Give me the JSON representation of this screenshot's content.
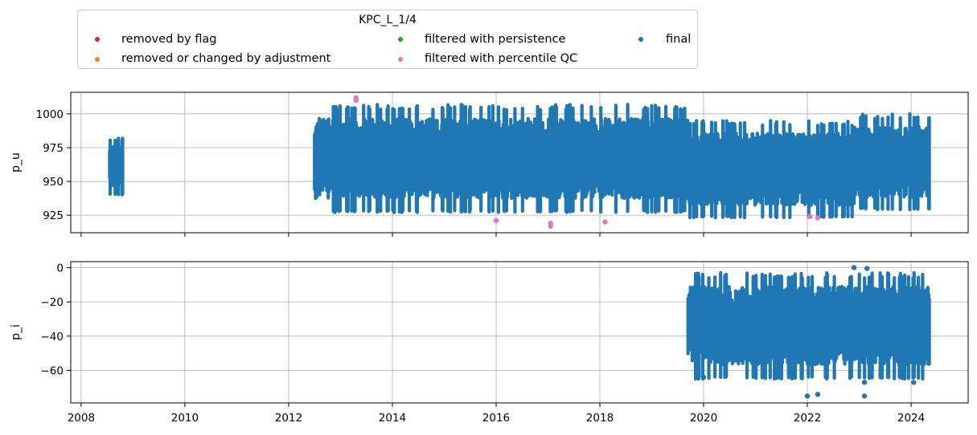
{
  "legend": {
    "title": "KPC_L_1/4",
    "items": [
      {
        "label": "removed by flag",
        "color": "#d62728"
      },
      {
        "label": "removed or changed by adjustment",
        "color": "#ff7f0e"
      },
      {
        "label": "filtered with persistence",
        "color": "#2ca02c"
      },
      {
        "label": "filtered with percentile QC",
        "color": "#e377c2"
      },
      {
        "label": "final",
        "color": "#1f77b4"
      }
    ]
  },
  "chart_data": [
    {
      "type": "scatter",
      "ylabel": "p_u",
      "xlim": [
        2007.8,
        2025.1
      ],
      "ylim": [
        912,
        1016
      ],
      "yticks": [
        "925",
        "950",
        "975",
        "1000"
      ],
      "xticks": [
        "2008",
        "2010",
        "2012",
        "2014",
        "2016",
        "2018",
        "2020",
        "2022",
        "2024"
      ],
      "grid": true,
      "series": [
        {
          "name": "final",
          "color": "#1f77b4",
          "segments": [
            {
              "x_start": 2008.55,
              "x_end": 2008.8,
              "y_low": 940,
              "y_high": 982
            },
            {
              "x_start": 2012.5,
              "x_end": 2019.7,
              "y_low": 927,
              "y_high": 1007
            },
            {
              "x_start": 2019.7,
              "x_end": 2022.9,
              "y_low": 923,
              "y_high": 995
            },
            {
              "x_start": 2022.9,
              "x_end": 2024.35,
              "y_low": 929,
              "y_high": 1000
            }
          ]
        },
        {
          "name": "filtered with percentile QC",
          "color": "#e377c2",
          "points": [
            {
              "x": 2013.3,
              "y": 1012
            },
            {
              "x": 2013.3,
              "y": 1010
            },
            {
              "x": 2016.0,
              "y": 921
            },
            {
              "x": 2017.05,
              "y": 917
            },
            {
              "x": 2017.05,
              "y": 919
            },
            {
              "x": 2018.1,
              "y": 920
            },
            {
              "x": 2022.05,
              "y": 924
            },
            {
              "x": 2022.2,
              "y": 923
            }
          ]
        }
      ]
    },
    {
      "type": "scatter",
      "ylabel": "p_i",
      "xlim": [
        2007.8,
        2025.1
      ],
      "ylim": [
        -79,
        3.5
      ],
      "yticks": [
        "0",
        "−20",
        "−40",
        "−60"
      ],
      "xticks": [
        "2008",
        "2010",
        "2012",
        "2014",
        "2016",
        "2018",
        "2020",
        "2022",
        "2024"
      ],
      "grid": true,
      "series": [
        {
          "name": "final",
          "color": "#1f77b4",
          "segments": [
            {
              "x_start": 2019.7,
              "x_end": 2024.35,
              "y_low": -65,
              "y_high": -3
            }
          ],
          "outliers": [
            {
              "x": 2022.0,
              "y": -75
            },
            {
              "x": 2022.2,
              "y": -74
            },
            {
              "x": 2023.1,
              "y": -75
            },
            {
              "x": 2022.9,
              "y": 0
            },
            {
              "x": 2023.15,
              "y": -0.5
            },
            {
              "x": 2020.0,
              "y": -64
            },
            {
              "x": 2024.05,
              "y": -67
            },
            {
              "x": 2023.1,
              "y": -67
            }
          ]
        }
      ]
    }
  ]
}
